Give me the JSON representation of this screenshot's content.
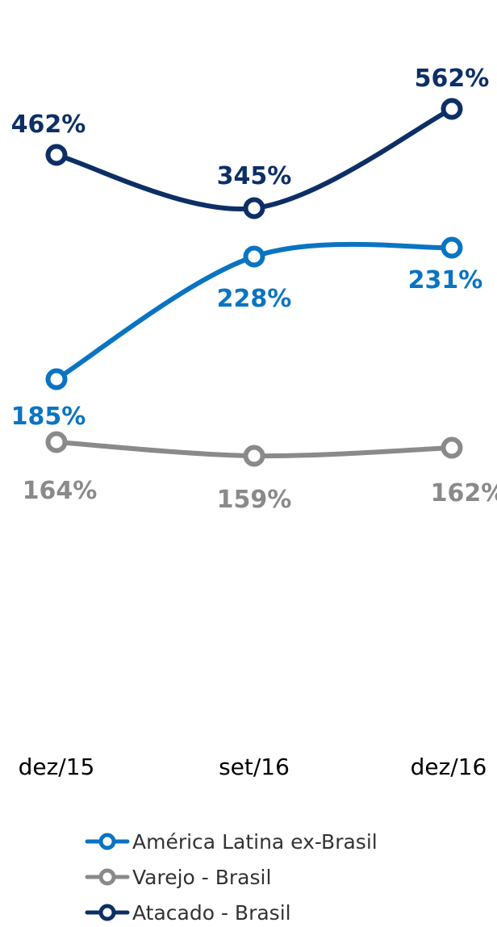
{
  "chart_data": {
    "type": "line",
    "categories": [
      "dez/15",
      "set/16",
      "dez/16"
    ],
    "series": [
      {
        "name": "América Latina ex-Brasil",
        "values": [
          185,
          228,
          231
        ],
        "labels": [
          "185%",
          "228%",
          "231%"
        ],
        "color": "#0a74c2"
      },
      {
        "name": "Varejo - Brasil",
        "values": [
          164,
          159,
          162
        ],
        "labels": [
          "164%",
          "159%",
          "162%"
        ],
        "color": "#8a8a8a"
      },
      {
        "name": "Atacado - Brasil",
        "values": [
          462,
          345,
          562
        ],
        "labels": [
          "462%",
          "345%",
          "562%"
        ],
        "color": "#0d2f66"
      }
    ],
    "legend_position": "bottom",
    "grid": false
  }
}
